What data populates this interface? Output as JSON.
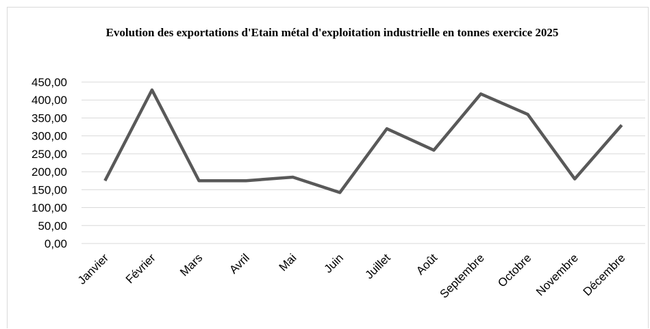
{
  "chart_data": {
    "type": "line",
    "title": "Evolution des exportations d'Etain métal d'exploitation industrielle en tonnes exercice 2025",
    "categories": [
      "Janvier",
      "Février",
      "Mars",
      "Avril",
      "Mai",
      "Juin",
      "Juillet",
      "Août",
      "Septembre",
      "Octobre",
      "Novembre",
      "Décembre"
    ],
    "series": [
      {
        "name": "Exportations",
        "color": "#595959",
        "values": [
          175,
          428,
          175,
          175,
          185,
          142,
          320,
          260,
          417,
          360,
          180,
          330
        ]
      }
    ],
    "ylim": [
      0,
      450
    ],
    "yticks": [
      {
        "value": 0,
        "label": "0,00"
      },
      {
        "value": 50,
        "label": "50,00"
      },
      {
        "value": 100,
        "label": "100,00"
      },
      {
        "value": 150,
        "label": "150,00"
      },
      {
        "value": 200,
        "label": "200,00"
      },
      {
        "value": 250,
        "label": "250,00"
      },
      {
        "value": 300,
        "label": "300,00"
      },
      {
        "value": 350,
        "label": "350,00"
      },
      {
        "value": 400,
        "label": "400,00"
      },
      {
        "value": 450,
        "label": "450,00"
      }
    ],
    "grid": true
  }
}
